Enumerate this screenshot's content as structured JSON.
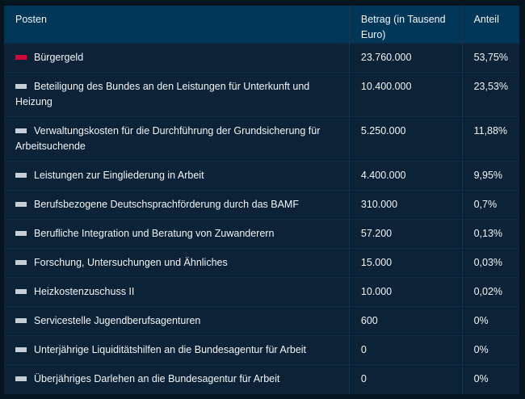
{
  "table": {
    "headers": [
      "Posten",
      "Betrag (in Tausend Euro)",
      "Anteil"
    ],
    "colors": {
      "highlight": "#d1083a",
      "default": "#c6ced8",
      "header_bg": "#003657",
      "row_bg": "#0b2237"
    },
    "rows": [
      {
        "posten": "Bürgergeld",
        "betrag": "23.760.000",
        "anteil": "53,75%",
        "marker": "highlight"
      },
      {
        "posten": "Beteiligung des Bundes an den Leistungen für Unterkunft und Heizung",
        "betrag": "10.400.000",
        "anteil": "23,53%",
        "marker": "default"
      },
      {
        "posten": "Verwaltungskosten für die Durchführung der Grundsicherung für Arbeitsuchende",
        "betrag": "5.250.000",
        "anteil": "11,88%",
        "marker": "default"
      },
      {
        "posten": "Leistungen zur Eingliederung in Arbeit",
        "betrag": "4.400.000",
        "anteil": "9,95%",
        "marker": "default"
      },
      {
        "posten": "Berufsbezogene Deutschsprachförderung durch das BAMF",
        "betrag": "310.000",
        "anteil": "0,7%",
        "marker": "default"
      },
      {
        "posten": "Berufliche Integration und Beratung von Zuwanderern",
        "betrag": "57.200",
        "anteil": "0,13%",
        "marker": "default"
      },
      {
        "posten": "Forschung, Untersuchungen und Ähnliches",
        "betrag": "15.000",
        "anteil": "0,03%",
        "marker": "default"
      },
      {
        "posten": "Heizkostenzuschuss II",
        "betrag": "10.000",
        "anteil": "0,02%",
        "marker": "default"
      },
      {
        "posten": "Servicestelle Jugendberufsagenturen",
        "betrag": "600",
        "anteil": "0%",
        "marker": "default"
      },
      {
        "posten": "Unterjährige Liquiditätshilfen an die Bundesagentur für Arbeit",
        "betrag": "0",
        "anteil": "0%",
        "marker": "default"
      },
      {
        "posten": "Überjähriges Darlehen an die Bundesagentur für Arbeit",
        "betrag": "0",
        "anteil": "0%",
        "marker": "default"
      }
    ]
  }
}
